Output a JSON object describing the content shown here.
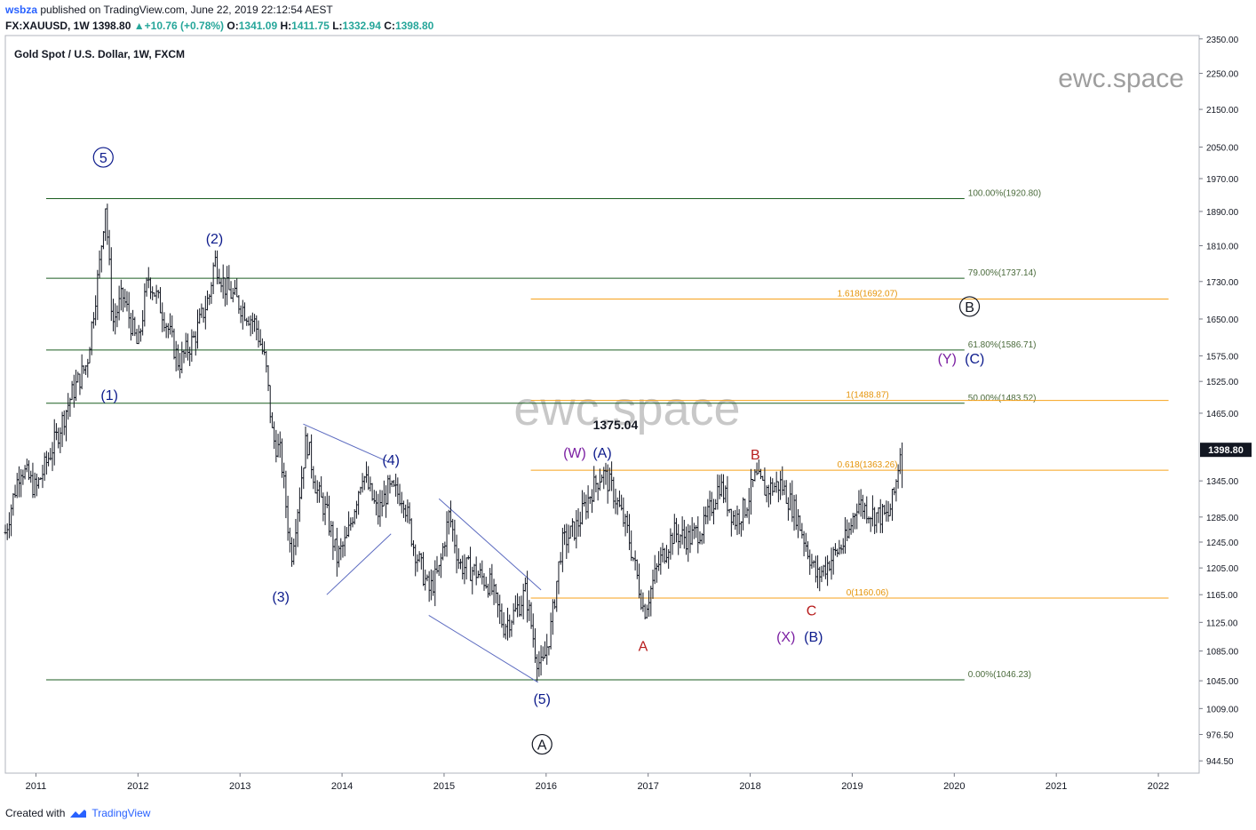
{
  "header": {
    "publisher": "wsbza",
    "published_text": "published on TradingView.com, June 22, 2019 22:12:54 AEST",
    "symbol": "FX:XAUUSD, 1W",
    "last": "1398.80",
    "change": "+10.76 (+0.78%)",
    "ohlc": [
      {
        "label": "O:",
        "value": "1341.09"
      },
      {
        "label": "H:",
        "value": "1411.75"
      },
      {
        "label": "L:",
        "value": "1332.94"
      },
      {
        "label": "C:",
        "value": "1398.80"
      }
    ]
  },
  "footer": {
    "created_with": "Created with",
    "brand": "TradingView",
    "logo_icon": "tradingview-cloud-icon"
  },
  "watermark": "ewc.space",
  "chart_data": {
    "type": "candlestick",
    "title": "Gold Spot / U.S. Dollar, 1W, FXCM",
    "ylim": [
      930,
      2360
    ],
    "y_scale": "log",
    "y_ticks": [
      "2350.00",
      "2250.00",
      "2150.00",
      "2050.00",
      "1970.00",
      "1890.00",
      "1810.00",
      "1730.00",
      "1650.00",
      "1575.00",
      "1525.00",
      "1465.00",
      "1345.00",
      "1285.00",
      "1245.00",
      "1205.00",
      "1165.00",
      "1125.00",
      "1085.00",
      "1045.00",
      "1009.00",
      "976.50",
      "944.50"
    ],
    "x_ticks": [
      "2011",
      "2012",
      "2013",
      "2014",
      "2015",
      "2016",
      "2017",
      "2018",
      "2019",
      "2020",
      "2021",
      "2022"
    ],
    "x_range": [
      2010.7,
      2022.4
    ],
    "last_price_label": "1398.80",
    "colors": {
      "bars": "#131722",
      "fib_green": "#1b5e20",
      "fib_orange": "#f7a21b",
      "wave_blue": "#0d1b8c",
      "wave_purple": "#7b1fa2",
      "wave_red": "#b71c1c",
      "trendline": "#5c6bc0"
    },
    "price_path": [
      [
        2010.7,
        1260
      ],
      [
        2010.85,
        1370
      ],
      [
        2011.0,
        1330
      ],
      [
        2011.2,
        1420
      ],
      [
        2011.35,
        1500
      ],
      [
        2011.5,
        1560
      ],
      [
        2011.62,
        1760
      ],
      [
        2011.68,
        1910
      ],
      [
        2011.75,
        1640
      ],
      [
        2011.85,
        1700
      ],
      [
        2012.0,
        1590
      ],
      [
        2012.1,
        1740
      ],
      [
        2012.25,
        1660
      ],
      [
        2012.4,
        1560
      ],
      [
        2012.55,
        1610
      ],
      [
        2012.7,
        1700
      ],
      [
        2012.75,
        1780
      ],
      [
        2012.85,
        1720
      ],
      [
        2013.0,
        1680
      ],
      [
        2013.15,
        1640
      ],
      [
        2013.25,
        1560
      ],
      [
        2013.32,
        1420
      ],
      [
        2013.4,
        1390
      ],
      [
        2013.5,
        1220
      ],
      [
        2013.58,
        1320
      ],
      [
        2013.65,
        1420
      ],
      [
        2013.75,
        1330
      ],
      [
        2013.85,
        1290
      ],
      [
        2013.95,
        1220
      ],
      [
        2014.05,
        1250
      ],
      [
        2014.2,
        1360
      ],
      [
        2014.35,
        1290
      ],
      [
        2014.45,
        1330
      ],
      [
        2014.6,
        1320
      ],
      [
        2014.7,
        1240
      ],
      [
        2014.85,
        1170
      ],
      [
        2014.95,
        1200
      ],
      [
        2015.05,
        1290
      ],
      [
        2015.15,
        1210
      ],
      [
        2015.3,
        1200
      ],
      [
        2015.45,
        1180
      ],
      [
        2015.58,
        1120
      ],
      [
        2015.7,
        1140
      ],
      [
        2015.8,
        1170
      ],
      [
        2015.9,
        1080
      ],
      [
        2015.96,
        1060
      ],
      [
        2016.05,
        1120
      ],
      [
        2016.15,
        1240
      ],
      [
        2016.3,
        1270
      ],
      [
        2016.45,
        1330
      ],
      [
        2016.55,
        1360
      ],
      [
        2016.65,
        1330
      ],
      [
        2016.8,
        1260
      ],
      [
        2016.96,
        1140
      ],
      [
        2017.1,
        1210
      ],
      [
        2017.25,
        1260
      ],
      [
        2017.4,
        1250
      ],
      [
        2017.55,
        1270
      ],
      [
        2017.7,
        1340
      ],
      [
        2017.85,
        1280
      ],
      [
        2017.95,
        1300
      ],
      [
        2018.05,
        1350
      ],
      [
        2018.15,
        1330
      ],
      [
        2018.3,
        1340
      ],
      [
        2018.45,
        1290
      ],
      [
        2018.55,
        1240
      ],
      [
        2018.65,
        1190
      ],
      [
        2018.8,
        1220
      ],
      [
        2018.95,
        1250
      ],
      [
        2019.05,
        1310
      ],
      [
        2019.2,
        1290
      ],
      [
        2019.35,
        1285
      ],
      [
        2019.42,
        1330
      ],
      [
        2019.47,
        1398.8
      ]
    ],
    "fib_levels": [
      {
        "label": "100.00%(1920.80)",
        "value": 1920.8,
        "x_start": 2011.1,
        "x_end": 2020.1,
        "color": "#1b5e20"
      },
      {
        "label": "79.00%(1737.14)",
        "value": 1737.14,
        "x_start": 2011.1,
        "x_end": 2020.1,
        "color": "#1b5e20"
      },
      {
        "label": "61.80%(1586.71)",
        "value": 1586.71,
        "x_start": 2011.1,
        "x_end": 2020.1,
        "color": "#1b5e20"
      },
      {
        "label": "50.00%(1483.52)",
        "value": 1483.52,
        "x_start": 2011.1,
        "x_end": 2020.1,
        "color": "#1b5e20"
      },
      {
        "label": "0.00%(1046.23)",
        "value": 1046.23,
        "x_start": 2011.1,
        "x_end": 2020.1,
        "color": "#1b5e20"
      },
      {
        "label": "1.618(1692.07)",
        "value": 1692.07,
        "x_start": 2015.85,
        "x_end": 2022.1,
        "color": "#f7a21b"
      },
      {
        "label": "1(1488.87)",
        "value": 1488.87,
        "x_start": 2015.85,
        "x_end": 2022.1,
        "color": "#f7a21b"
      },
      {
        "label": "0.618(1363.26)",
        "value": 1363.26,
        "x_start": 2015.85,
        "x_end": 2022.1,
        "color": "#f7a21b"
      },
      {
        "label": "0(1160.06)",
        "value": 1160.06,
        "x_start": 2015.85,
        "x_end": 2022.1,
        "color": "#f7a21b"
      }
    ],
    "trendlines": [
      {
        "from": [
          2013.62,
          1445
        ],
        "to": [
          2014.45,
          1378
        ]
      },
      {
        "from": [
          2013.85,
          1165
        ],
        "to": [
          2014.48,
          1258
        ]
      },
      {
        "from": [
          2014.95,
          1315
        ],
        "to": [
          2015.95,
          1172
        ]
      },
      {
        "from": [
          2014.85,
          1135
        ],
        "to": [
          2015.92,
          1043
        ]
      }
    ],
    "annotations": [
      {
        "text": "5",
        "x": 2011.66,
        "y": 2010,
        "color": "#0d1b8c",
        "circled": true
      },
      {
        "text": "(2)",
        "x": 2012.75,
        "y": 1815,
        "color": "#0d1b8c"
      },
      {
        "text": "(1)",
        "x": 2011.72,
        "y": 1490,
        "color": "#0d1b8c"
      },
      {
        "text": "(3)",
        "x": 2013.4,
        "y": 1155,
        "color": "#0d1b8c"
      },
      {
        "text": "(4)",
        "x": 2014.48,
        "y": 1373,
        "color": "#0d1b8c"
      },
      {
        "text": "(5)",
        "x": 2015.96,
        "y": 1015,
        "color": "#0d1b8c"
      },
      {
        "text": "A",
        "x": 2015.96,
        "y": 958,
        "color": "#131722",
        "circled": true
      },
      {
        "text": "1375.04",
        "x": 2016.68,
        "y": 1436,
        "color": "#131722",
        "bold": true
      },
      {
        "text": "(W)",
        "x": 2016.28,
        "y": 1385,
        "color": "#7b1fa2"
      },
      {
        "text": "(A)",
        "x": 2016.55,
        "y": 1385,
        "color": "#0d1b8c"
      },
      {
        "text": "A",
        "x": 2016.95,
        "y": 1085,
        "color": "#b71c1c"
      },
      {
        "text": "B",
        "x": 2018.05,
        "y": 1382,
        "color": "#b71c1c"
      },
      {
        "text": "C",
        "x": 2018.6,
        "y": 1135,
        "color": "#b71c1c"
      },
      {
        "text": "(X)",
        "x": 2018.35,
        "y": 1098,
        "color": "#7b1fa2"
      },
      {
        "text": "(B)",
        "x": 2018.62,
        "y": 1098,
        "color": "#0d1b8c"
      },
      {
        "text": "B",
        "x": 2020.15,
        "y": 1665,
        "color": "#131722",
        "circled": true
      },
      {
        "text": "(Y)",
        "x": 2019.93,
        "y": 1560,
        "color": "#7b1fa2"
      },
      {
        "text": "(C)",
        "x": 2020.2,
        "y": 1560,
        "color": "#0d1b8c"
      }
    ]
  }
}
